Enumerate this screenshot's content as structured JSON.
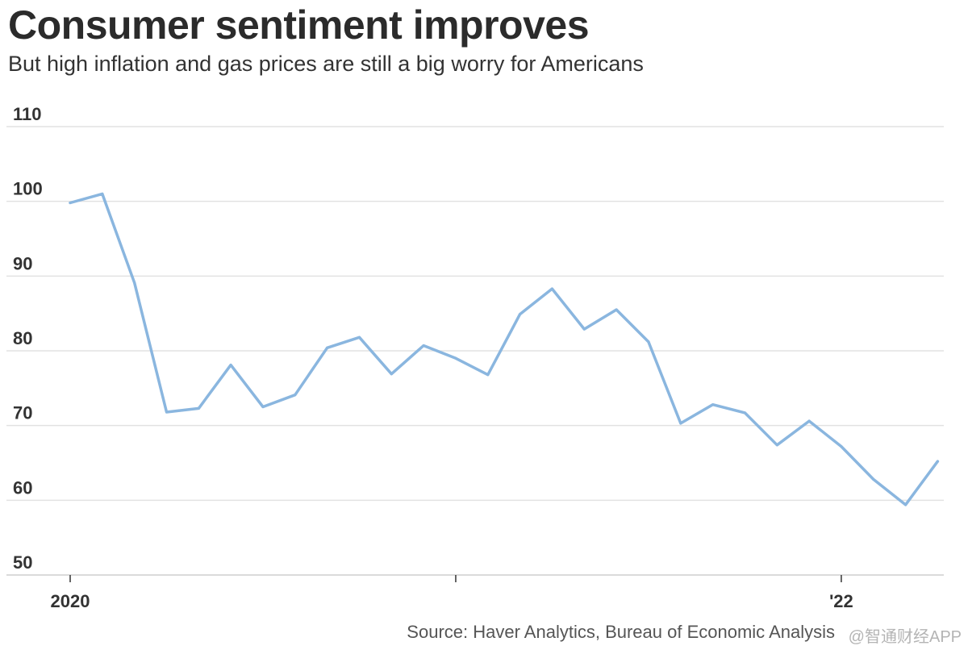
{
  "header": {
    "title": "Consumer sentiment improves",
    "subtitle": "But high inflation and gas prices are still a big worry for Americans"
  },
  "footer": {
    "source": "Source: Haver Analytics, Bureau of Economic Analysis",
    "watermark": "@智通财经APP"
  },
  "chart_data": {
    "type": "line",
    "title": "Consumer sentiment improves",
    "subtitle": "But high inflation and gas prices are still a big worry for Americans",
    "xlabel": "",
    "ylabel": "",
    "ylim": [
      50,
      110
    ],
    "yticks": [
      50,
      60,
      70,
      80,
      90,
      100,
      110
    ],
    "xticks": [
      {
        "index": 0,
        "label": "2020"
      },
      {
        "index": 12,
        "label": ""
      },
      {
        "index": 24,
        "label": "'22"
      }
    ],
    "grid": true,
    "line_color": "#8ab6df",
    "x": [
      "2020-01",
      "2020-02",
      "2020-03",
      "2020-04",
      "2020-05",
      "2020-06",
      "2020-07",
      "2020-08",
      "2020-09",
      "2020-10",
      "2020-11",
      "2020-12",
      "2021-01",
      "2021-02",
      "2021-03",
      "2021-04",
      "2021-05",
      "2021-06",
      "2021-07",
      "2021-08",
      "2021-09",
      "2021-10",
      "2021-11",
      "2021-12",
      "2022-01",
      "2022-02",
      "2022-03",
      "2022-04"
    ],
    "values": [
      99.8,
      101.0,
      89.1,
      71.8,
      72.3,
      78.1,
      72.5,
      74.1,
      80.4,
      81.8,
      76.9,
      80.7,
      79.0,
      76.8,
      84.9,
      88.3,
      82.9,
      85.5,
      81.2,
      70.3,
      72.8,
      71.7,
      67.4,
      70.6,
      67.2,
      62.8,
      59.4,
      65.2
    ]
  }
}
